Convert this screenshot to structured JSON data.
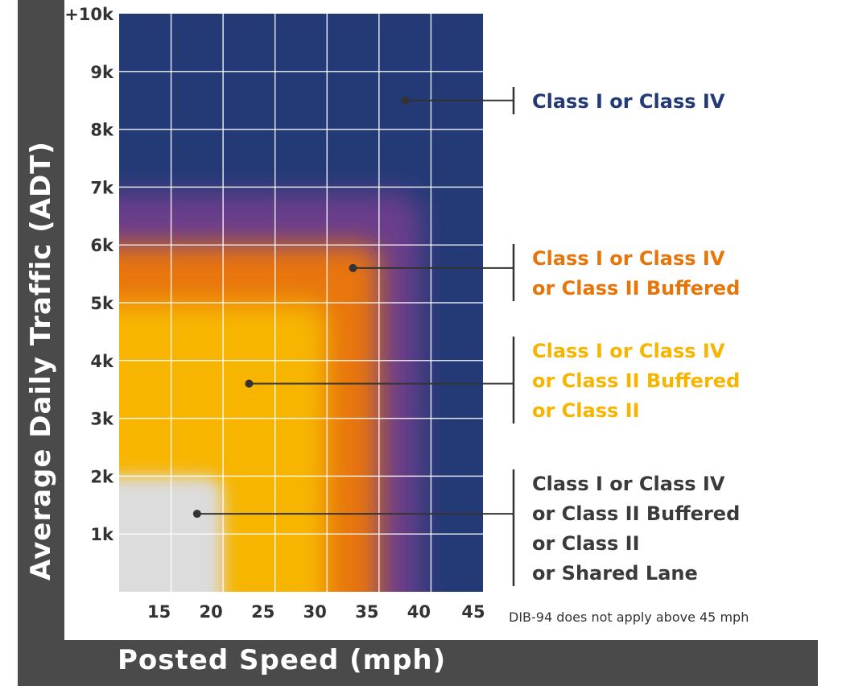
{
  "chart_data": {
    "type": "heatmap",
    "xlabel": "Posted Speed (mph)",
    "ylabel": "Average Daily Traffic (ADT)",
    "x_ticks": [
      "15",
      "20",
      "25",
      "30",
      "35",
      "40",
      "45"
    ],
    "y_ticks": [
      "1k",
      "2k",
      "3k",
      "4k",
      "5k",
      "6k",
      "7k",
      "8k",
      "9k",
      "+10k"
    ],
    "xlim": [
      10,
      45
    ],
    "ylim": [
      0,
      10000
    ],
    "grid": true,
    "regions": [
      {
        "label_lines": [
          "Class I or Class IV"
        ],
        "color": "#233a77",
        "max_speed": 45,
        "max_adt": 10000,
        "marker": {
          "speed": 37.5,
          "adt": 8500
        }
      },
      {
        "label_lines": [
          "Class I or Class IV",
          "or Class II Buffered"
        ],
        "color": "#e8750a",
        "max_speed": 35,
        "max_adt": 6000,
        "marker": {
          "speed": 32.5,
          "adt": 5600
        }
      },
      {
        "label_lines": [
          "Class I or Class IV",
          "or Class II Buffered",
          "or Class II"
        ],
        "color": "#f7b500",
        "max_speed": 30,
        "max_adt": 5000,
        "marker": {
          "speed": 22.5,
          "adt": 3600
        }
      },
      {
        "label_lines": [
          "Class I or Class IV",
          "or Class II Buffered",
          "or Class II",
          "or Shared Lane"
        ],
        "color": "#dcdcdc",
        "max_speed": 20,
        "max_adt": 2000,
        "marker": {
          "speed": 17.5,
          "adt": 1350
        }
      }
    ],
    "label_colors": [
      "#233a77",
      "#e8750a",
      "#f7b500",
      "#3a3a3a"
    ],
    "note": "DIB-94 does not apply above 45 mph"
  }
}
